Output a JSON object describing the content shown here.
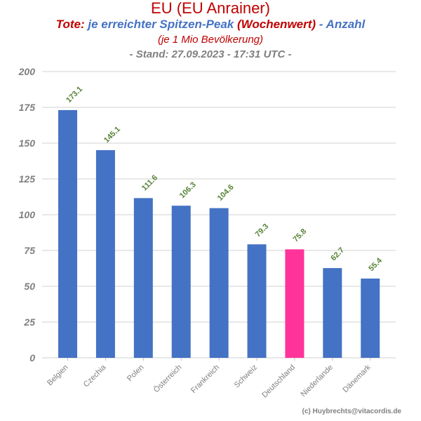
{
  "header": {
    "title": "EU (EU Anrainer)",
    "subtitle_part1": "Tote:",
    "subtitle_part2": "je erreichter Spitzen-Peak",
    "subtitle_part3": "(Wochenwert)",
    "subtitle_part4": "- Anzahl",
    "subtitle_line2": "(je 1 Mio Bevölkerung)",
    "subtitle_line3": "- Stand: 27.09.2023 - 17:31 UTC -"
  },
  "credit": "(c) Huybrechts@vitacordis.de",
  "colors": {
    "title_red": "#c00000",
    "bar_blue": "#4472c4",
    "highlight_pink": "#ff3399",
    "label_green": "#548235",
    "axis_gray": "#7f7f7f",
    "grid": "#d9d9d9"
  },
  "chart_data": {
    "type": "bar",
    "categories": [
      "Belgien",
      "Czechia",
      "Polen",
      "Österreich",
      "Frankreich",
      "Schweiz",
      "Deutschland",
      "Niederlande",
      "Dänemark"
    ],
    "values": [
      173.1,
      145.1,
      111.6,
      106.3,
      104.6,
      79.3,
      75.8,
      62.7,
      55.4
    ],
    "data_labels": [
      "173.1",
      "145.1",
      "111.6",
      "106.3",
      "104.6",
      "79.3",
      "75.8",
      "62.7",
      "55.4"
    ],
    "highlight_category": "Deutschland",
    "ylim": [
      0,
      200
    ],
    "yticks": [
      0,
      25,
      50,
      75,
      100,
      125,
      150,
      175,
      200
    ],
    "grid": true,
    "legend": "none"
  }
}
